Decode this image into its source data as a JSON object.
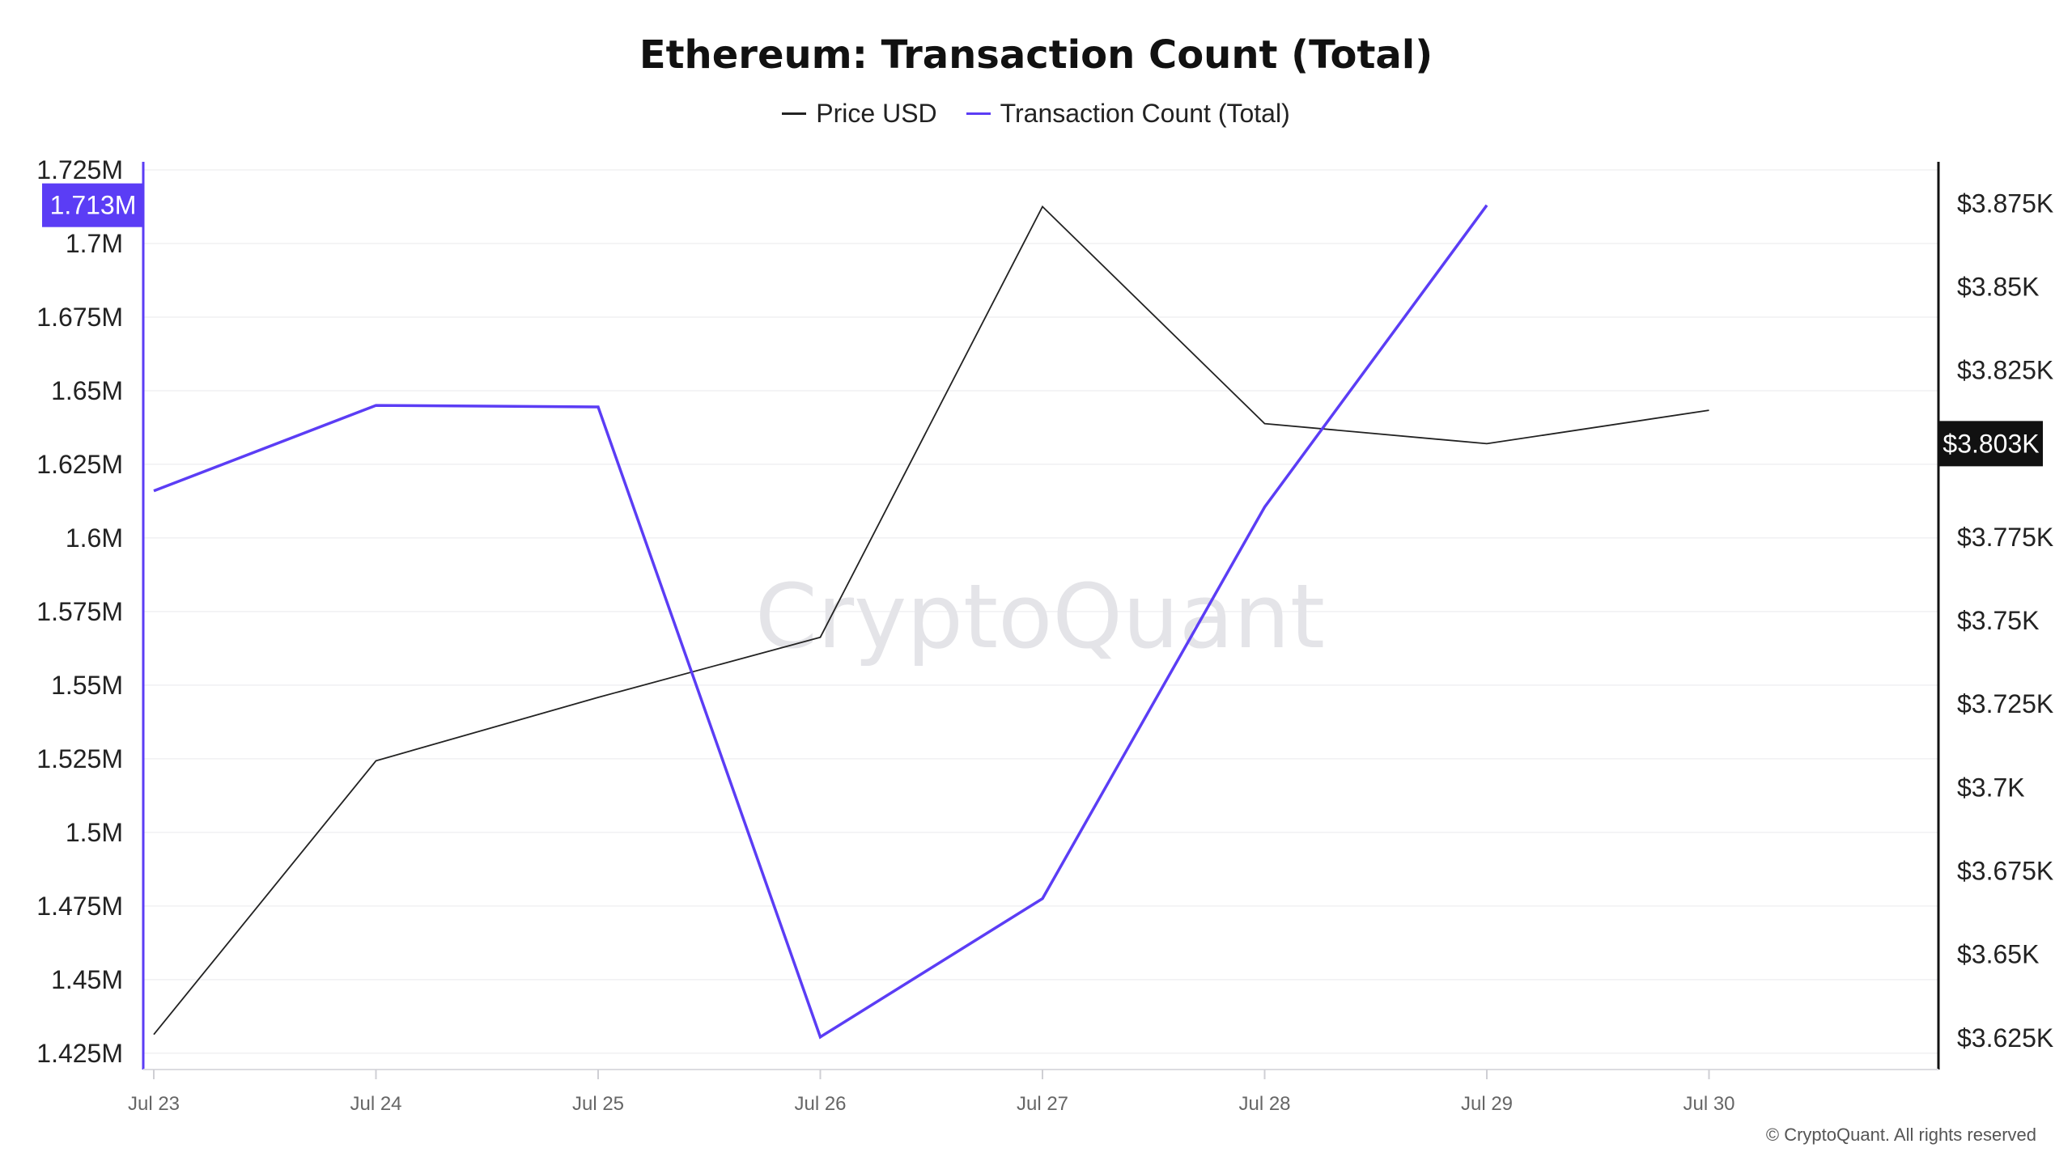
{
  "header": {
    "title": "Ethereum: Transaction Count (Total)"
  },
  "legend": {
    "items": [
      {
        "label": "Price USD",
        "color": "#222222"
      },
      {
        "label": "Transaction Count (Total)",
        "color": "#5b3df5"
      }
    ]
  },
  "watermark": "CryptoQuant",
  "footer": {
    "copyright": "© CryptoQuant. All rights reserved"
  },
  "chart_data": {
    "type": "line",
    "title": "Ethereum: Transaction Count (Total)",
    "categories": [
      "Jul 23",
      "Jul 24",
      "Jul 25",
      "Jul 26",
      "Jul 27",
      "Jul 28",
      "Jul 29",
      "Jul 30"
    ],
    "series": [
      {
        "name": "Price USD",
        "axis": "right",
        "color": "#222222",
        "values": [
          3626,
          3708,
          3727,
          3745,
          3874,
          3809,
          3803,
          3813
        ]
      },
      {
        "name": "Transaction Count (Total)",
        "axis": "left",
        "color": "#5b3df5",
        "values": [
          1616000,
          1645000,
          1644500,
          1430500,
          1477500,
          1610500,
          1713000,
          null
        ]
      }
    ],
    "left_axis": {
      "ticks": [
        1425000,
        1450000,
        1475000,
        1500000,
        1525000,
        1550000,
        1575000,
        1600000,
        1625000,
        1650000,
        1675000,
        1700000,
        1725000
      ],
      "tick_labels": [
        "1.425M",
        "1.45M",
        "1.475M",
        "1.5M",
        "1.525M",
        "1.55M",
        "1.575M",
        "1.6M",
        "1.625M",
        "1.65M",
        "1.675M",
        "1.7M",
        "1.725M"
      ],
      "range": [
        1420000,
        1725000
      ],
      "current_value": 1713000,
      "current_label": "1.713M",
      "badge_color": "#5b3df5"
    },
    "right_axis": {
      "ticks": [
        3625,
        3650,
        3675,
        3700,
        3725,
        3750,
        3775,
        3825,
        3850,
        3875
      ],
      "tick_labels": [
        "$3.625K",
        "$3.65K",
        "$3.675K",
        "$3.7K",
        "$3.725K",
        "$3.75K",
        "$3.775K",
        "$3.825K",
        "$3.85K",
        "$3.875K"
      ],
      "range": [
        3616,
        3885
      ],
      "current_value": 3803,
      "current_label": "$3.803K",
      "badge_color": "#111111"
    },
    "grid": true
  }
}
